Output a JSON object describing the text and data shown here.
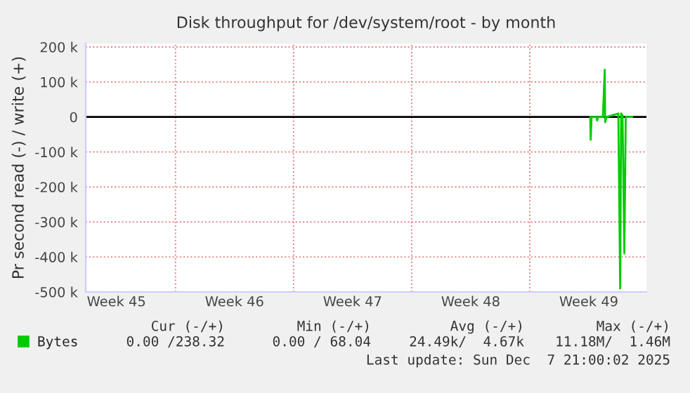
{
  "chart_data": {
    "type": "line",
    "title": "Disk throughput for /dev/system/root - by month",
    "ylabel": "Pr second read (-) / write (+)",
    "x": [
      "2025-12-04T14:00",
      "2025-12-04T14:40",
      "2025-12-04T16:00",
      "2025-12-04T22:35",
      "2025-12-04T23:55",
      "2025-12-05T01:15",
      "2025-12-05T08:00",
      "2025-12-05T10:40",
      "2025-12-05T11:20",
      "2025-12-05T13:20",
      "2025-12-06T06:00",
      "2025-12-06T08:40",
      "2025-12-06T10:00",
      "2025-12-06T12:00",
      "2025-12-06T14:35",
      "2025-12-06T16:35",
      "2025-12-07T02:00"
    ],
    "series": [
      {
        "name": "Bytes",
        "color": "#00cc00",
        "values": [
          0,
          -65000,
          0,
          0,
          -10000,
          0,
          0,
          135000,
          -15000,
          0,
          10000,
          -490000,
          10000,
          5000,
          -390000,
          0,
          0
        ]
      }
    ],
    "xlim": [
      "2025-11-04T16:20",
      "2025-12-07T22:00"
    ],
    "xticks": [
      {
        "value": "2025-11-06T12:00",
        "label": "Week 45"
      },
      {
        "value": "2025-11-10",
        "label": null
      },
      {
        "value": "2025-11-13T12:00",
        "label": "Week 46"
      },
      {
        "value": "2025-11-17",
        "label": null
      },
      {
        "value": "2025-11-20T12:00",
        "label": "Week 47"
      },
      {
        "value": "2025-11-24",
        "label": null
      },
      {
        "value": "2025-11-27T12:00",
        "label": "Week 48"
      },
      {
        "value": "2025-12-01",
        "label": null
      },
      {
        "value": "2025-12-04T12:00",
        "label": "Week 49"
      }
    ],
    "ylim": [
      -500000,
      210000
    ],
    "yticks": [
      {
        "value": 200000,
        "label": "200 k"
      },
      {
        "value": 100000,
        "label": "100 k"
      },
      0,
      {
        "value": -100000,
        "label": "-100 k"
      },
      {
        "value": -200000,
        "label": "-200 k"
      },
      {
        "value": -300000,
        "label": "-300 k"
      },
      {
        "value": -400000,
        "label": "-400 k"
      },
      {
        "value": -500000,
        "label": "-500 k"
      }
    ],
    "grid": true,
    "legend": "bottom left",
    "ref_lines": [
      {
        "axis": "y",
        "value": 0,
        "color": "#000000"
      }
    ],
    "annotations": [
      "Cur (-/+)",
      "Min (-/+)",
      "Avg (-/+)",
      "Max (-/+)",
      "0.00 /238.32",
      "0.00 / 68.04",
      "24.49k/  4.67k",
      "11.18M/  1.46M",
      "Last update: Sun Dec  7 21:00:02 2025"
    ]
  }
}
